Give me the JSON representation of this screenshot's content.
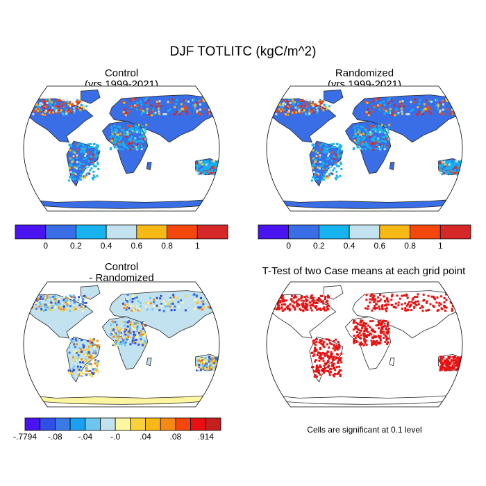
{
  "figure_title": "DJF TOTLITC (kgC/m^2)",
  "panels": {
    "control": {
      "title_line1": "Control",
      "title_line2": "(yrs 1999-2021)"
    },
    "randomized": {
      "title_line1": "Randomized",
      "title_line2": "(yrs 1999-2021)"
    },
    "difference": {
      "title_line1": "Control",
      "title_line2": "- Randomized"
    },
    "ttest": {
      "title_line1": "T-Test of two Case means at each grid point"
    }
  },
  "colorbar_main": {
    "colors": [
      "#4a14f0",
      "#3a6ee6",
      "#17b3ee",
      "#c2e2f0",
      "#f8b916",
      "#f4470e",
      "#d62828"
    ],
    "tick_labels": [
      "0",
      "0.2",
      "0.4",
      "0.6",
      "0.8",
      "1"
    ]
  },
  "colorbar_diff": {
    "colors": [
      "#4a14f0",
      "#2f4fe6",
      "#3a7ae6",
      "#1aa0f0",
      "#6cc6ee",
      "#c2e2f0",
      "#fdf6a0",
      "#f9d13a",
      "#f8b916",
      "#f48a12",
      "#f4470e",
      "#e81010",
      "#c42020"
    ],
    "tick_labels": [
      "-.7794",
      "-.08",
      "-.04",
      "-.0",
      ".04",
      ".08",
      ".914"
    ]
  },
  "significance_note": "Cells are significant at 0.1 level",
  "colors": {
    "ocean": "#ffffff",
    "land_control": "#3a6ee6",
    "land_diff": "#c2e2f0",
    "significant_cell": "#e81010"
  }
}
